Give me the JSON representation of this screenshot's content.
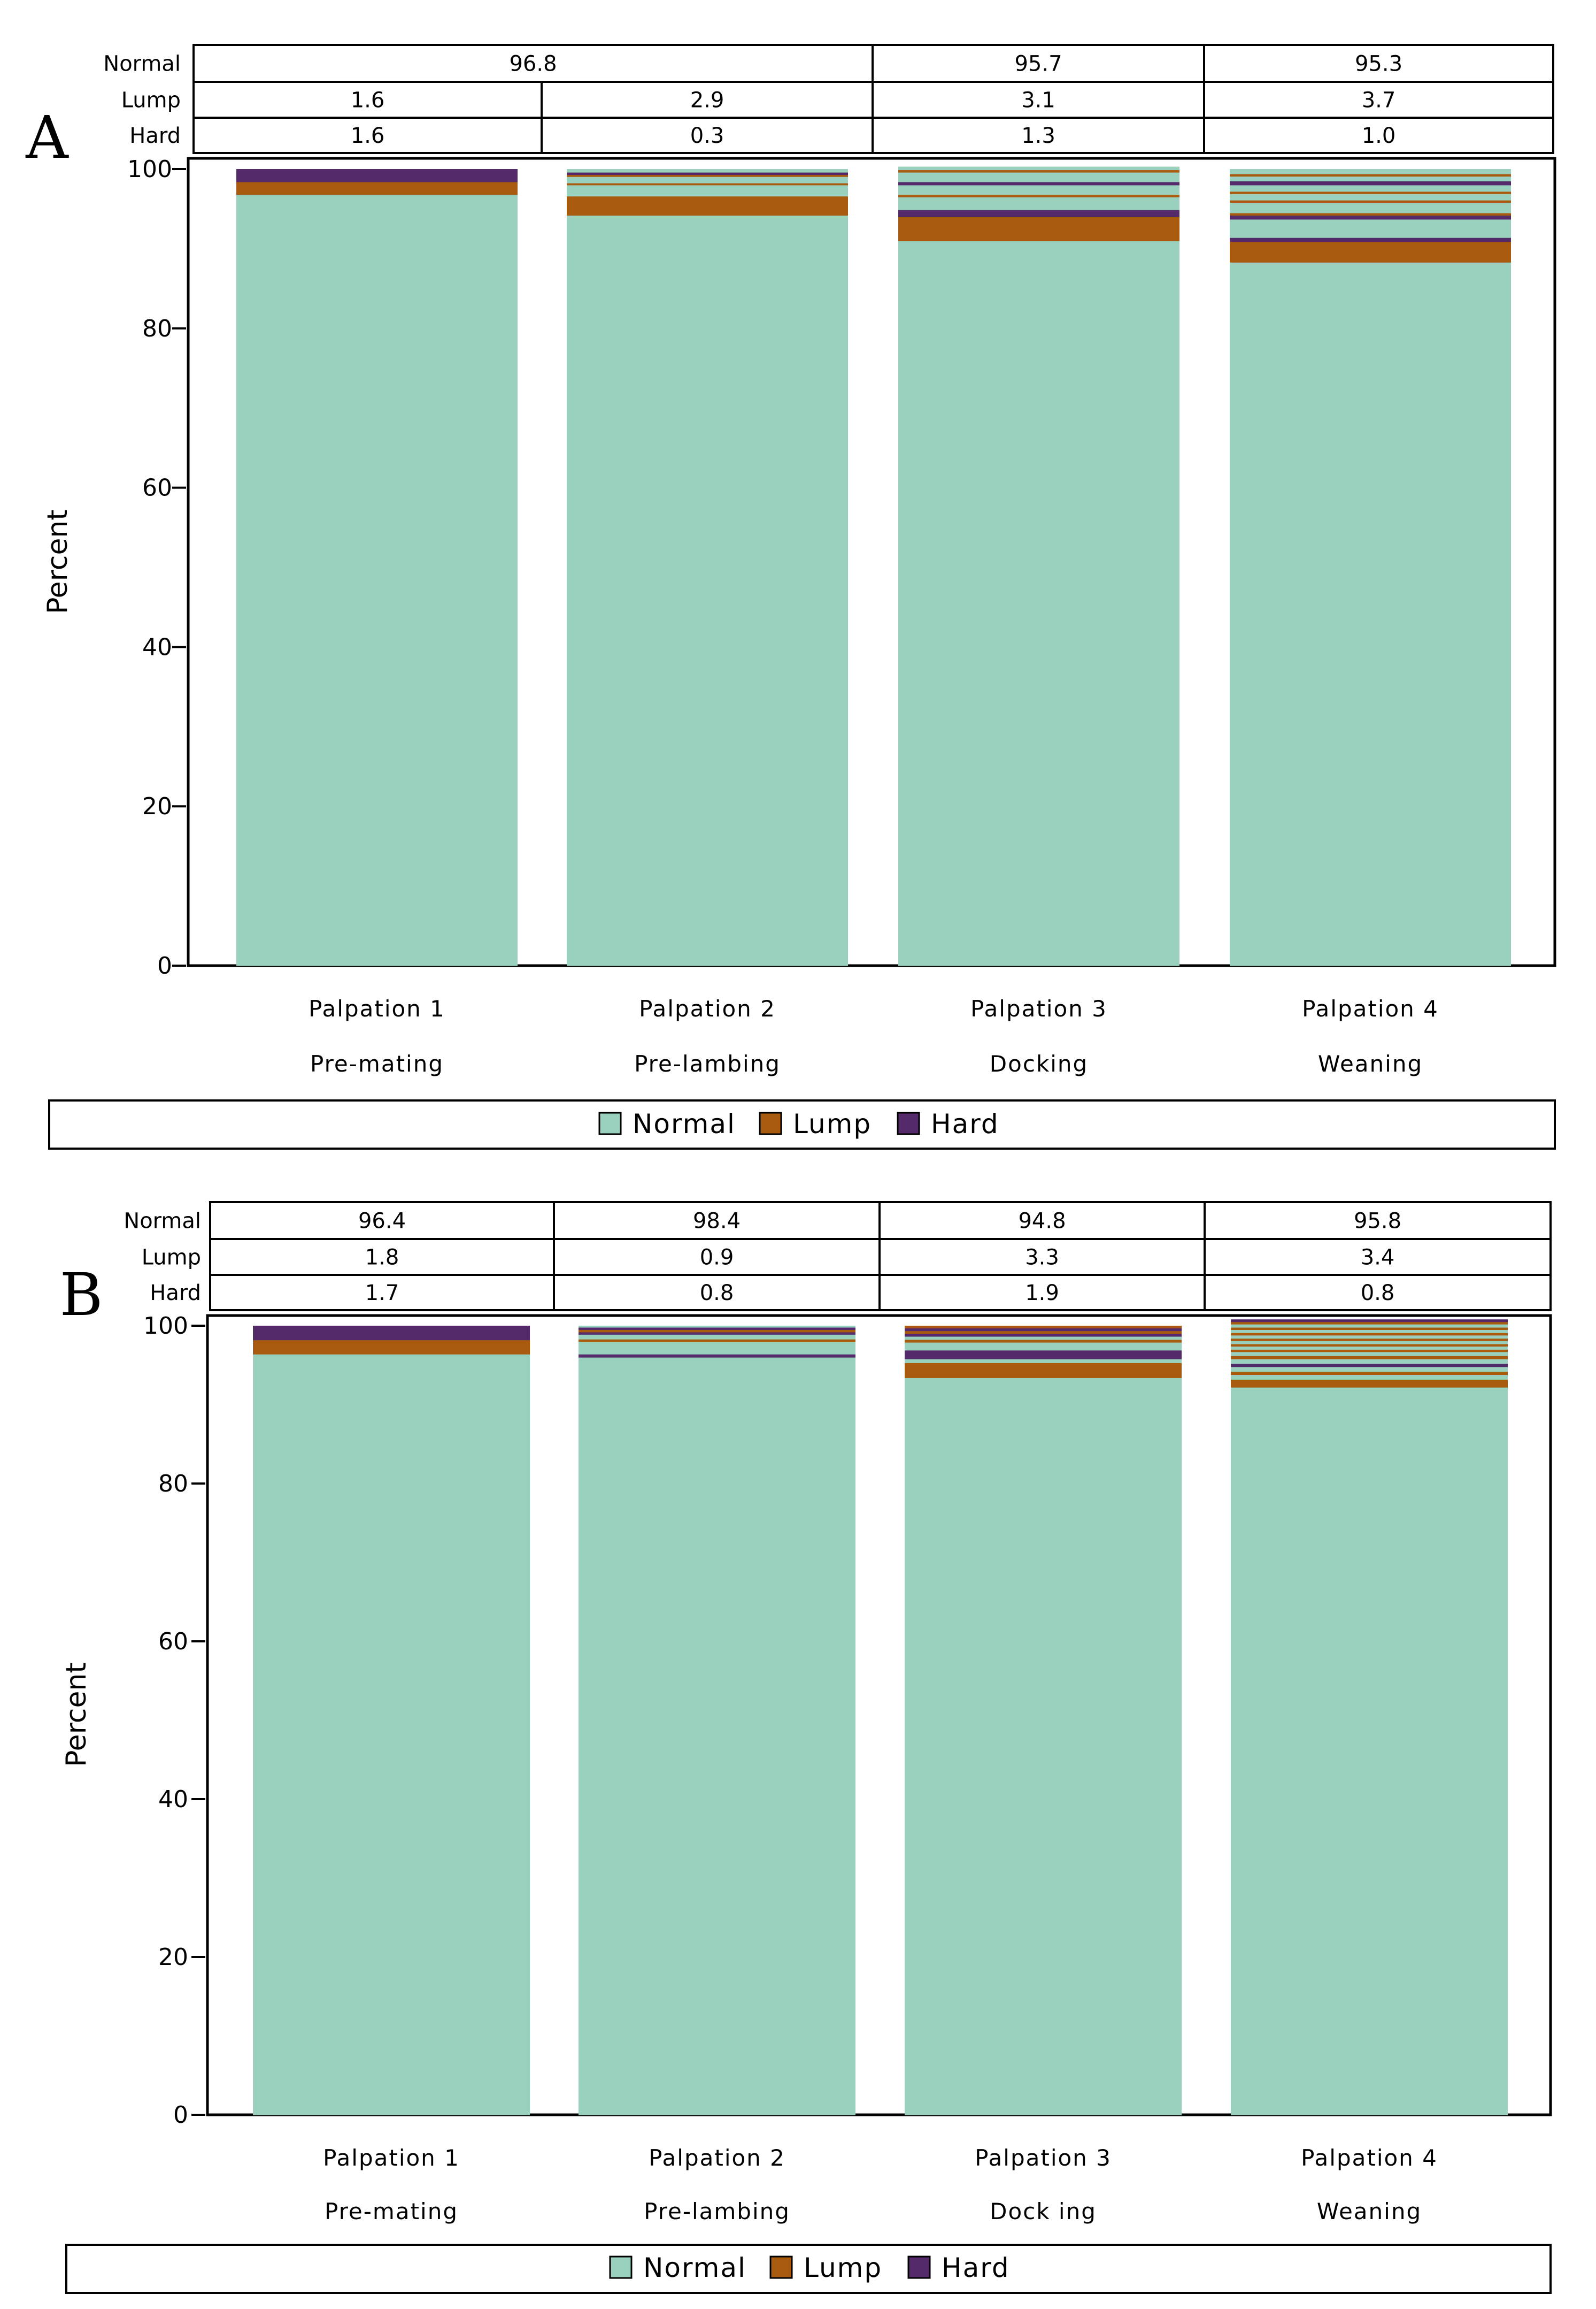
{
  "colors": {
    "normal": "#99d1be",
    "lump": "#a85b0e",
    "hard": "#552a6a",
    "axis": "#000000"
  },
  "chart_data": [
    {
      "type": "bar",
      "panel_label": "A",
      "ylabel": "Percent",
      "ylim": [
        0,
        100
      ],
      "yticks": [
        "0",
        "20",
        "40",
        "60",
        "80",
        "100"
      ],
      "categories": [
        {
          "name": "Palpation 1",
          "sub": "Pre-mating"
        },
        {
          "name": "Palpation 2",
          "sub": "Pre-lambing"
        },
        {
          "name": "Palpation 3",
          "sub": "Docking"
        },
        {
          "name": "Palpation 4",
          "sub": "Weaning"
        }
      ],
      "table": {
        "row_labels": [
          "Normal",
          "Lump",
          "Hard"
        ],
        "normal": [
          {
            "text": "96.8",
            "span": 2
          },
          {
            "text": "95.7",
            "span": 1
          },
          {
            "text": "95.3",
            "span": 1
          }
        ],
        "lump": [
          "1.6",
          "2.9",
          "3.1",
          "3.7"
        ],
        "hard": [
          "1.6",
          "0.3",
          "1.3",
          "1.0"
        ]
      },
      "legend": [
        "Normal",
        "Lump",
        "Hard"
      ],
      "bars": [
        [
          [
            "normal",
            96.8
          ],
          [
            "lump",
            1.6
          ],
          [
            "hard",
            1.6
          ]
        ],
        [
          [
            "normal",
            94.2
          ],
          [
            "lump",
            2.4
          ],
          [
            "normal",
            1.4
          ],
          [
            "lump",
            0.25
          ],
          [
            "normal",
            0.8
          ],
          [
            "lump",
            0.25
          ],
          [
            "hard",
            0.3
          ],
          [
            "normal",
            0.4
          ]
        ],
        [
          [
            "normal",
            91.0
          ],
          [
            "lump",
            3.0
          ],
          [
            "hard",
            0.9
          ],
          [
            "normal",
            1.6
          ],
          [
            "lump",
            0.3
          ],
          [
            "normal",
            1.2
          ],
          [
            "hard",
            0.4
          ],
          [
            "normal",
            1.2
          ],
          [
            "lump",
            0.3
          ],
          [
            "normal",
            0.4
          ]
        ],
        [
          [
            "normal",
            88.3
          ],
          [
            "lump",
            2.6
          ],
          [
            "hard",
            0.5
          ],
          [
            "normal",
            2.3
          ],
          [
            "hard",
            0.5
          ],
          [
            "lump",
            0.3
          ],
          [
            "normal",
            1.3
          ],
          [
            "lump",
            0.3
          ],
          [
            "normal",
            0.8
          ],
          [
            "lump",
            0.3
          ],
          [
            "normal",
            0.8
          ],
          [
            "hard",
            0.5
          ],
          [
            "normal",
            0.6
          ],
          [
            "lump",
            0.3
          ],
          [
            "normal",
            0.6
          ]
        ]
      ]
    },
    {
      "type": "bar",
      "panel_label": "B",
      "ylabel": "Percent",
      "ylim": [
        0,
        100
      ],
      "yticks": [
        "0",
        "20",
        "40",
        "60",
        "80",
        "100"
      ],
      "categories": [
        {
          "name": "Palpation 1",
          "sub": "Pre-mating"
        },
        {
          "name": "Palpation 2",
          "sub": "Pre-lambing"
        },
        {
          "name": "Palpation 3",
          "sub": "Dock ing"
        },
        {
          "name": "Palpation 4",
          "sub": "Weaning"
        }
      ],
      "table": {
        "row_labels": [
          "Normal",
          "Lump",
          "Hard"
        ],
        "normal": [
          {
            "text": "96.4",
            "span": 1
          },
          {
            "text": "98.4",
            "span": 1
          },
          {
            "text": "94.8",
            "span": 1
          },
          {
            "text": "95.8",
            "span": 1
          }
        ],
        "lump": [
          "1.8",
          "0.9",
          "3.3",
          "3.4"
        ],
        "hard": [
          "1.7",
          "0.8",
          "1.9",
          "0.8"
        ]
      },
      "legend": [
        "Normal",
        "Lump",
        "Hard"
      ],
      "bars": [
        [
          [
            "normal",
            96.4
          ],
          [
            "lump",
            1.8
          ],
          [
            "hard",
            1.8
          ]
        ],
        [
          [
            "normal",
            96.0
          ],
          [
            "hard",
            0.4
          ],
          [
            "normal",
            1.6
          ],
          [
            "lump",
            0.3
          ],
          [
            "normal",
            0.6
          ],
          [
            "hard",
            0.3
          ],
          [
            "lump",
            0.3
          ],
          [
            "hard",
            0.3
          ],
          [
            "normal",
            0.2
          ]
        ],
        [
          [
            "normal",
            93.4
          ],
          [
            "lump",
            1.9
          ],
          [
            "normal",
            0.5
          ],
          [
            "hard",
            1.1
          ],
          [
            "normal",
            1.0
          ],
          [
            "lump",
            0.35
          ],
          [
            "normal",
            0.4
          ],
          [
            "hard",
            0.35
          ],
          [
            "lump",
            0.35
          ],
          [
            "hard",
            0.35
          ],
          [
            "lump",
            0.3
          ]
        ],
        [
          [
            "normal",
            92.2
          ],
          [
            "lump",
            1.0
          ],
          [
            "normal",
            0.6
          ],
          [
            "lump",
            0.4
          ],
          [
            "normal",
            0.6
          ],
          [
            "hard",
            0.4
          ],
          [
            "normal",
            0.6
          ],
          [
            "lump",
            0.4
          ],
          [
            "normal",
            0.5
          ],
          [
            "lump",
            0.3
          ],
          [
            "normal",
            0.4
          ],
          [
            "lump",
            0.3
          ],
          [
            "normal",
            0.4
          ],
          [
            "lump",
            0.3
          ],
          [
            "normal",
            0.4
          ],
          [
            "lump",
            0.3
          ],
          [
            "normal",
            0.4
          ],
          [
            "lump",
            0.3
          ],
          [
            "normal",
            0.4
          ],
          [
            "lump",
            0.3
          ],
          [
            "hard",
            0.3
          ]
        ]
      ]
    }
  ]
}
